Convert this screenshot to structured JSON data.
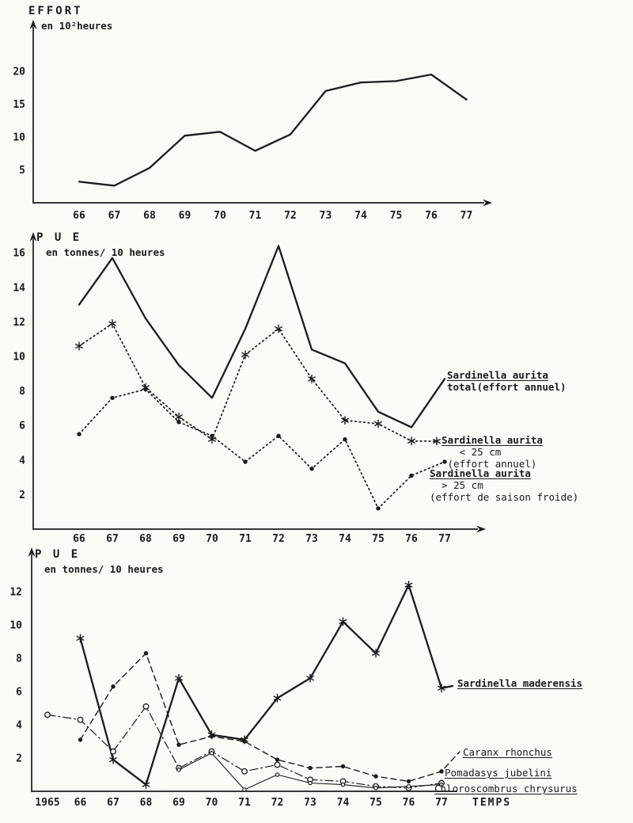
{
  "figure": {
    "background": "#fbfaf5",
    "ink": "#1b1b1b"
  },
  "chart_data": [
    {
      "id": "effort-chart",
      "type": "line",
      "title": "EFFORT",
      "subtitle": "en 10²heures",
      "x_labels": [
        "66",
        "67",
        "68",
        "69",
        "70",
        "71",
        "72",
        "73",
        "74",
        "75",
        "76",
        "77"
      ],
      "yticks": [
        5,
        10,
        15,
        20
      ],
      "ylim": [
        0,
        26
      ],
      "grid": false,
      "legend_position": "none",
      "series": [
        {
          "name": "effort",
          "style": "solid-bold",
          "marker": "none",
          "values": [
            3.2,
            2.6,
            5.3,
            10.2,
            10.8,
            7.9,
            10.4,
            17.0,
            18.3,
            18.5,
            19.5,
            15.7
          ]
        }
      ],
      "legends": []
    },
    {
      "id": "pue-sardinella-aurita-chart",
      "type": "line",
      "title": "P U E",
      "subtitle": "en tonnes/ 10 heures",
      "x_labels": [
        "66",
        "67",
        "68",
        "69",
        "70",
        "71",
        "72",
        "73",
        "74",
        "75",
        "76",
        "77"
      ],
      "yticks": [
        2,
        4,
        6,
        8,
        10,
        12,
        14,
        16
      ],
      "ylim": [
        0,
        17
      ],
      "grid": false,
      "legend_position": "right",
      "series": [
        {
          "name": "sardinella-aurita-total",
          "style": "solid-bold",
          "marker": "none",
          "values": [
            13.0,
            15.7,
            12.2,
            9.5,
            7.6,
            11.6,
            16.4,
            10.4,
            9.6,
            6.8,
            5.9,
            8.7
          ]
        },
        {
          "name": "sardinella-aurita-under-25cm",
          "style": "dotted",
          "marker": "asterisk",
          "values": [
            10.6,
            11.9,
            8.2,
            6.5,
            5.2,
            10.1,
            11.6,
            8.7,
            6.3,
            6.1,
            5.1,
            null
          ]
        },
        {
          "name": "sardinella-aurita-over-25cm",
          "style": "dotted",
          "marker": "dot",
          "values": [
            5.5,
            7.6,
            8.1,
            6.2,
            5.4,
            3.9,
            5.4,
            3.5,
            5.2,
            1.2,
            3.1,
            3.9
          ]
        }
      ],
      "legends": [
        {
          "series": 0,
          "lines": [
            {
              "text": "Sardinella aurita",
              "underline": true,
              "bold": true
            },
            {
              "text": "total(effort annuel)",
              "underline": false,
              "bold": true
            }
          ]
        },
        {
          "series": 1,
          "lines": [
            {
              "text": "Sardinella aurita",
              "underline": true,
              "bold": true
            },
            {
              "text": "   < 25 cm",
              "underline": false,
              "bold": false
            },
            {
              "text": " (effort annuel)",
              "underline": false,
              "bold": false
            }
          ]
        },
        {
          "series": 2,
          "lines": [
            {
              "text": "Sardinella aurita",
              "underline": true,
              "bold": true
            },
            {
              "text": "  > 25 cm",
              "underline": false,
              "bold": false
            },
            {
              "text": "(effort de saison froide)",
              "underline": false,
              "bold": false
            }
          ]
        }
      ]
    },
    {
      "id": "pue-other-species-chart",
      "type": "line",
      "title": "P U E",
      "subtitle": "en tonnes/ 10 heures",
      "xlabel": "TEMPS",
      "x_labels": [
        "1965",
        "66",
        "67",
        "68",
        "69",
        "70",
        "71",
        "72",
        "73",
        "74",
        "75",
        "76",
        "77"
      ],
      "yticks": [
        2,
        4,
        6,
        8,
        10,
        12
      ],
      "ylim": [
        0,
        14
      ],
      "grid": false,
      "legend_position": "right",
      "series": [
        {
          "name": "sardinella-maderensis",
          "style": "solid-bold",
          "marker": "asterisk",
          "values": [
            null,
            9.2,
            1.9,
            0.4,
            6.8,
            3.4,
            3.1,
            5.6,
            6.8,
            10.2,
            8.3,
            12.4,
            6.2
          ]
        },
        {
          "name": "caranx-rhonchus",
          "style": "dashed",
          "marker": "dot",
          "values": [
            null,
            3.1,
            6.3,
            8.3,
            2.8,
            3.3,
            3.0,
            1.9,
            1.4,
            1.5,
            0.9,
            0.6,
            1.2
          ]
        },
        {
          "name": "pomadasys-jubelini",
          "style": "dashdot",
          "marker": "circle",
          "values": [
            4.6,
            4.3,
            2.4,
            5.1,
            1.4,
            2.4,
            1.2,
            1.6,
            0.7,
            0.6,
            0.3,
            0.2,
            0.5
          ]
        },
        {
          "name": "chloroscombrus-chrysurus",
          "style": "solid-thin",
          "marker": "circle-small",
          "values": [
            null,
            null,
            null,
            null,
            1.3,
            2.3,
            0.1,
            1.0,
            0.5,
            0.4,
            0.2,
            0.3,
            0.4
          ]
        }
      ],
      "legends": [
        {
          "series": 0,
          "lines": [
            {
              "text": "Sardinella maderensis",
              "underline": true,
              "bold": true
            }
          ]
        },
        {
          "series": 1,
          "lines": [
            {
              "text": "Caranx rhonchus",
              "underline": true,
              "bold": false
            }
          ]
        },
        {
          "series": 2,
          "lines": [
            {
              "text": "Pomadasys jubelini",
              "underline": true,
              "bold": false
            }
          ]
        },
        {
          "series": 3,
          "lines": [
            {
              "text": "Chloroscombrus chrysurus",
              "underline": true,
              "bold": false
            }
          ]
        }
      ]
    }
  ]
}
